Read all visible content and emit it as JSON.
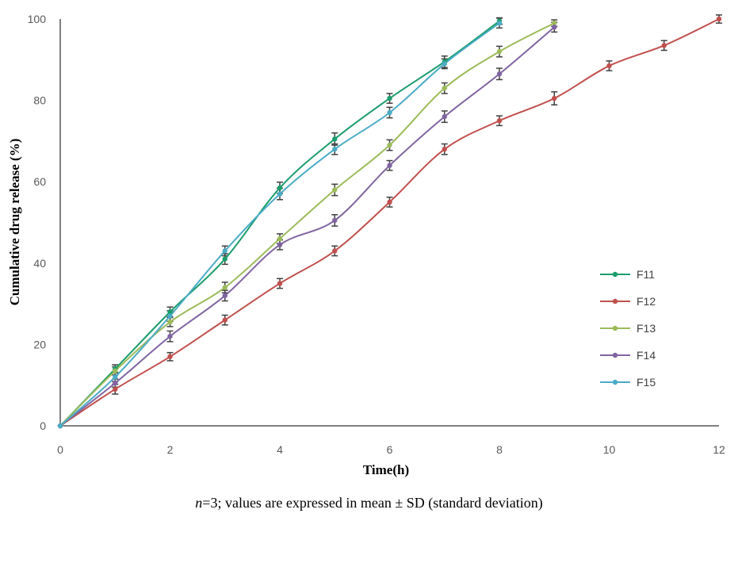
{
  "chart_data": {
    "type": "line",
    "xlabel": "Time(h)",
    "ylabel": "Cumulative drug release (%)",
    "xlim": [
      0,
      12
    ],
    "ylim": [
      0,
      100
    ],
    "xticks": [
      0,
      2,
      4,
      6,
      8,
      10,
      12
    ],
    "yticks": [
      0,
      20,
      40,
      60,
      80,
      100
    ],
    "grid": false,
    "legend_position": "right",
    "series": [
      {
        "name": "F11",
        "color": "#1a9c6b",
        "x": [
          0,
          1,
          2,
          3,
          4,
          5,
          6,
          7,
          8
        ],
        "y": [
          0,
          14,
          28,
          41,
          58.5,
          70.5,
          80.5,
          89.5,
          99.5
        ],
        "err": [
          0,
          1,
          1.2,
          1.3,
          1.4,
          1.5,
          1.2,
          1.4,
          0.8
        ]
      },
      {
        "name": "F12",
        "color": "#c0504d",
        "x": [
          0,
          1,
          2,
          3,
          4,
          5,
          6,
          7,
          8,
          9,
          10,
          11,
          12
        ],
        "y": [
          0,
          9,
          17,
          26,
          35,
          43,
          55,
          68,
          75,
          80.5,
          88.5,
          93.5,
          100
        ],
        "err": [
          0,
          1.2,
          1,
          1.2,
          1.2,
          1.2,
          1.2,
          1.3,
          1.2,
          1.6,
          1.2,
          1.2,
          1
        ]
      },
      {
        "name": "F13",
        "color": "#9bbb59",
        "x": [
          0,
          1,
          2,
          3,
          4,
          5,
          6,
          7,
          8,
          9
        ],
        "y": [
          0,
          13.5,
          25.5,
          34,
          46,
          58,
          69,
          83,
          92,
          99
        ],
        "err": [
          0,
          1,
          1.1,
          1.3,
          1.2,
          1.4,
          1.3,
          1.3,
          1.3,
          0.8
        ]
      },
      {
        "name": "F14",
        "color": "#8064a2",
        "x": [
          0,
          1,
          2,
          3,
          4,
          5,
          6,
          7,
          8,
          9
        ],
        "y": [
          0,
          10.5,
          22,
          32,
          44.5,
          50.5,
          64,
          76,
          86.5,
          98
        ],
        "err": [
          0,
          1,
          1.3,
          1.3,
          1.2,
          1.4,
          1.2,
          1.4,
          1.4,
          1.2
        ]
      },
      {
        "name": "F15",
        "color": "#4bacc6",
        "x": [
          0,
          1,
          2,
          3,
          4,
          5,
          6,
          7,
          8
        ],
        "y": [
          0,
          12,
          27,
          43,
          57,
          68,
          77,
          89,
          99
        ],
        "err": [
          0,
          1.1,
          1.3,
          1.2,
          1.4,
          1.3,
          1.3,
          1.2,
          1.2
        ]
      }
    ]
  },
  "footnote": {
    "n_label": "n",
    "rest": "=3; values are expressed in mean ± SD (standard deviation)"
  }
}
